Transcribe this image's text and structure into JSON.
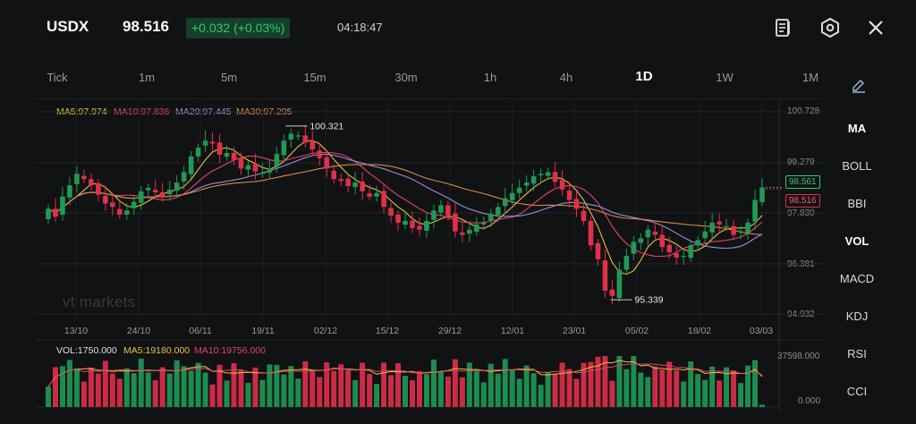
{
  "header": {
    "symbol": "USDX",
    "price": "98.516",
    "change": "+0.032 (+0.03%)",
    "time": "04:18:47",
    "icons": [
      "contract-info-icon",
      "settings-hex-icon",
      "close-icon"
    ]
  },
  "timeframes": [
    "Tick",
    "1m",
    "5m",
    "15m",
    "30m",
    "1h",
    "4h",
    "1D",
    "1W",
    "1M"
  ],
  "active_timeframe": "1D",
  "ma_legend": [
    {
      "label": "MA5:97.974",
      "color": "#e8c23a"
    },
    {
      "label": "MA10:97.836",
      "color": "#e0456a"
    },
    {
      "label": "MA20:97.445",
      "color": "#9a8fd8"
    },
    {
      "label": "MA30:97.295",
      "color": "#d88a4a"
    }
  ],
  "indicators": [
    "MA",
    "BOLL",
    "BBI",
    "VOL",
    "MACD",
    "KDJ",
    "RSI",
    "CCI"
  ],
  "active_indicators": [
    "MA",
    "VOL"
  ],
  "price_axis": [
    "100.728",
    "99.279",
    "97.830",
    "96.381",
    "94.932"
  ],
  "tags": {
    "ask": "98.561",
    "bid": "98.516"
  },
  "annotations": {
    "high": "100.321",
    "low": "95.339"
  },
  "date_axis": [
    "13/10",
    "24/10",
    "06/11",
    "19/11",
    "02/12",
    "15/12",
    "29/12",
    "12/01",
    "23/01",
    "05/02",
    "18/02",
    "03/03"
  ],
  "volume_legend": [
    {
      "label": "VOL:1750.000",
      "color": "#e0e0e0"
    },
    {
      "label": "MA5:19180.000",
      "color": "#e8c23a"
    },
    {
      "label": "MA10:19756.000",
      "color": "#e0456a"
    }
  ],
  "volume_axis": [
    "37598.000",
    "0.000"
  ],
  "watermark": "vt markets",
  "colors": {
    "up": "#1f9a55",
    "down": "#e0304a",
    "background": "#111214"
  },
  "chart_data": {
    "type": "candlestick",
    "ylim": [
      94.932,
      100.728
    ],
    "high_label": 100.321,
    "low_label": 95.339,
    "closes": [
      97.95,
      97.72,
      98.3,
      98.62,
      98.95,
      98.8,
      98.62,
      98.35,
      98.1,
      98.0,
      97.78,
      97.9,
      98.15,
      98.45,
      98.55,
      98.42,
      98.3,
      98.5,
      98.7,
      99.0,
      99.45,
      99.7,
      99.9,
      99.82,
      99.5,
      99.55,
      99.35,
      99.1,
      99.2,
      99.02,
      98.98,
      99.1,
      99.52,
      99.9,
      100.1,
      100.05,
      99.85,
      99.65,
      99.4,
      99.1,
      98.8,
      98.75,
      98.6,
      98.7,
      98.45,
      98.3,
      98.4,
      98.0,
      97.75,
      97.55,
      97.6,
      97.4,
      97.35,
      97.6,
      97.9,
      98.05,
      97.75,
      97.3,
      97.2,
      97.35,
      97.5,
      97.55,
      97.8,
      98.0,
      98.25,
      98.4,
      98.55,
      98.7,
      98.88,
      98.95,
      99.0,
      98.72,
      98.5,
      98.2,
      97.95,
      97.6,
      96.9,
      96.5,
      95.6,
      95.45,
      96.2,
      96.6,
      97.0,
      97.1,
      97.35,
      97.2,
      96.85,
      96.7,
      96.55,
      96.6,
      96.9,
      97.05,
      97.3,
      97.55,
      97.5,
      97.45,
      97.2,
      97.3,
      97.55,
      98.2,
      98.56
    ],
    "volume_ymax": 37598,
    "volume_ma5": 19180,
    "volume_ma10": 19756,
    "volume_last": 1750
  }
}
